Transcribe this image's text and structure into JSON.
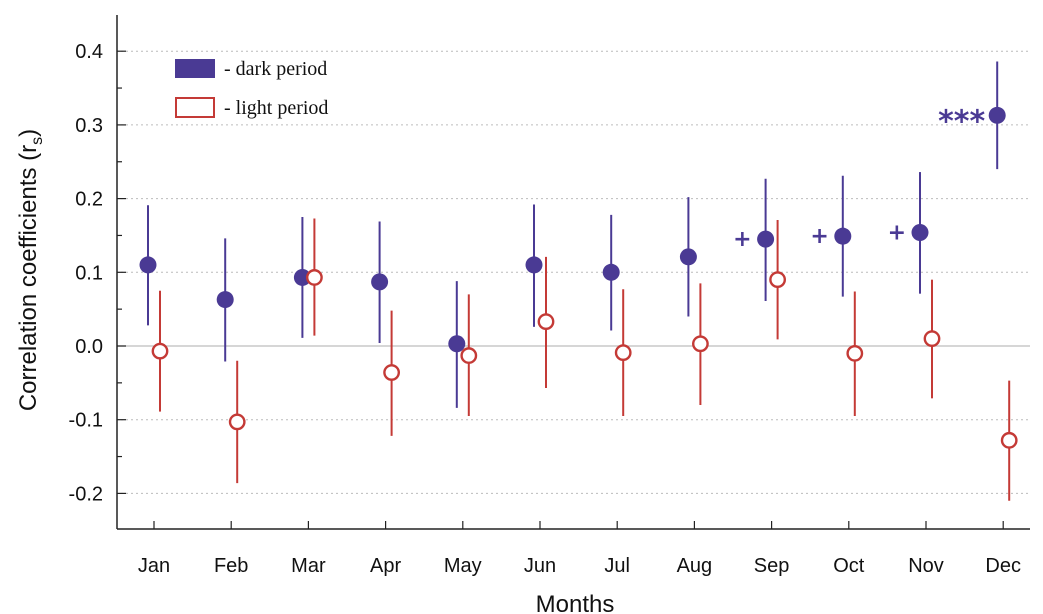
{
  "chart_data": {
    "type": "scatter",
    "title": "",
    "xlabel": "Months",
    "ylabel": "Correlation coefficients (r",
    "ylabel_subscript": "s",
    "ylabel_close": ")",
    "categories": [
      "Jan",
      "Feb",
      "Mar",
      "Apr",
      "May",
      "Jun",
      "Jul",
      "Aug",
      "Sep",
      "Oct",
      "Nov",
      "Dec"
    ],
    "ylim": [
      -0.25,
      0.45
    ],
    "yticks": [
      "0.4",
      "0.3",
      "0.2",
      "0.1",
      "0.0",
      "-0.1",
      "-0.2"
    ],
    "grid": true,
    "legend_placement": "top-left",
    "series": [
      {
        "name": "- dark period",
        "color": "#4a3a94",
        "marker": "filled-circle",
        "values": [
          0.11,
          0.063,
          0.093,
          0.087,
          0.003,
          0.11,
          0.1,
          0.121,
          0.145,
          0.149,
          0.154,
          0.313
        ],
        "lower": [
          0.028,
          -0.021,
          0.011,
          0.004,
          -0.084,
          0.026,
          0.021,
          0.04,
          0.061,
          0.067,
          0.071,
          0.24
        ],
        "upper": [
          0.191,
          0.146,
          0.175,
          0.169,
          0.088,
          0.192,
          0.178,
          0.202,
          0.227,
          0.231,
          0.236,
          0.386
        ]
      },
      {
        "name": "- light period",
        "color": "#c43a36",
        "marker": "open-circle",
        "values": [
          -0.007,
          -0.103,
          0.093,
          -0.036,
          -0.013,
          0.033,
          -0.009,
          0.003,
          0.09,
          -0.01,
          0.01,
          -0.128
        ],
        "lower": [
          -0.089,
          -0.186,
          0.014,
          -0.122,
          -0.095,
          -0.057,
          -0.095,
          -0.08,
          0.009,
          -0.095,
          -0.071,
          -0.21
        ],
        "upper": [
          0.075,
          -0.02,
          0.173,
          0.048,
          0.07,
          0.121,
          0.077,
          0.085,
          0.171,
          0.074,
          0.09,
          -0.047
        ]
      }
    ],
    "annotations": [
      {
        "text": "***",
        "category": "Dec",
        "series": "dark",
        "color": "#4a3a94"
      },
      {
        "text": "+",
        "category": "Sep",
        "series": "dark",
        "color": "#4a3a94"
      },
      {
        "text": "+",
        "category": "Oct",
        "series": "dark",
        "color": "#4a3a94"
      },
      {
        "text": "+",
        "category": "Nov",
        "series": "dark",
        "color": "#4a3a94"
      }
    ]
  }
}
